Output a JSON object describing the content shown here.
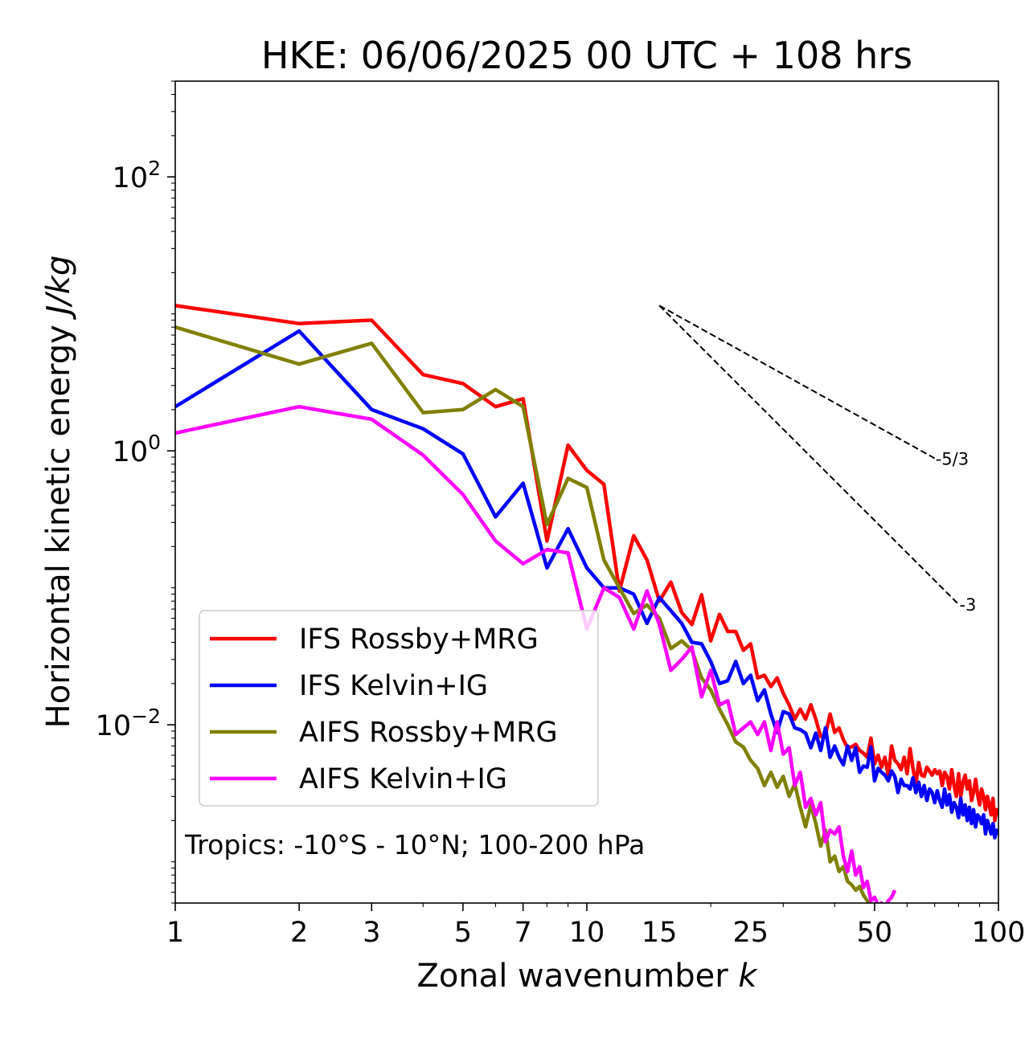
{
  "chart_data": {
    "type": "line",
    "title": "HKE: 06/06/2025 00 UTC + 108 hrs",
    "xlabel": "Zonal wavenumber k",
    "ylabel": "Horizontal kinetic energy J/kg",
    "xscale": "log",
    "yscale": "log",
    "xlim": [
      1,
      100
    ],
    "ylim": [
      0.0005,
      500
    ],
    "x_ticks": [
      {
        "value": 1,
        "label": "1"
      },
      {
        "value": 2,
        "label": "2"
      },
      {
        "value": 3,
        "label": "3"
      },
      {
        "value": 5,
        "label": "5"
      },
      {
        "value": 7,
        "label": "7"
      },
      {
        "value": 10,
        "label": "10"
      },
      {
        "value": 15,
        "label": "15"
      },
      {
        "value": 25,
        "label": "25"
      },
      {
        "value": 50,
        "label": "50"
      },
      {
        "value": 100,
        "label": "100"
      }
    ],
    "y_ticks": [
      {
        "value": 0.01,
        "base": "10",
        "exp": "−2"
      },
      {
        "value": 1,
        "base": "10",
        "exp": "0"
      },
      {
        "value": 100,
        "base": "10",
        "exp": "2"
      }
    ],
    "grid": false,
    "legend_position": "lower-left",
    "annotation": "Tropics: -10°S - 10°N; 100-200 hPa",
    "reference_lines": [
      {
        "label": "-5/3",
        "slope": -1.6667,
        "x": [
          15,
          70
        ],
        "y0": 11.5
      },
      {
        "label": "-3",
        "slope": -3,
        "x": [
          15,
          80
        ],
        "y0": 11.5
      }
    ],
    "series": [
      {
        "name": "IFS Rossby+MRG",
        "color": "#ff0000",
        "x": [
          1,
          2,
          3,
          4,
          5,
          6,
          7,
          8,
          9,
          10,
          11,
          12,
          13,
          14,
          15,
          16,
          17,
          18,
          19,
          20,
          21,
          22,
          23,
          24,
          25,
          26,
          27,
          28,
          29,
          30,
          31,
          32,
          33,
          34,
          35,
          36,
          37,
          38,
          39,
          40,
          41,
          42,
          43,
          44,
          45,
          46,
          47,
          48,
          49,
          50,
          51,
          52,
          53,
          54,
          55,
          56,
          57,
          58,
          59,
          60,
          61,
          62,
          63,
          64,
          65,
          66,
          67,
          68,
          69,
          70,
          71,
          72,
          73,
          74,
          75,
          76,
          77,
          78,
          79,
          80,
          81,
          82,
          83,
          84,
          85,
          86,
          87,
          88,
          89,
          90,
          91,
          92,
          93,
          94,
          95,
          96,
          97,
          98,
          99,
          100
        ],
        "y": [
          11.5,
          8.5,
          9.0,
          3.6,
          3.1,
          2.1,
          2.4,
          0.22,
          1.1,
          0.72,
          0.57,
          0.095,
          0.24,
          0.16,
          0.08,
          0.11,
          0.066,
          0.054,
          0.089,
          0.041,
          0.064,
          0.048,
          0.048,
          0.035,
          0.039,
          0.022,
          0.023,
          0.019,
          0.022,
          0.017,
          0.014,
          0.011,
          0.013,
          0.011,
          0.014,
          0.011,
          0.0082,
          0.0085,
          0.012,
          0.0088,
          0.0095,
          0.0078,
          0.0068,
          0.0069,
          0.0072,
          0.0065,
          0.0062,
          0.0058,
          0.008,
          0.0052,
          0.006,
          0.0049,
          0.0058,
          0.0042,
          0.007,
          0.0055,
          0.0052,
          0.0047,
          0.0058,
          0.0044,
          0.0067,
          0.0048,
          0.0037,
          0.0053,
          0.0043,
          0.0042,
          0.0049,
          0.0046,
          0.0043,
          0.0047,
          0.0044,
          0.0046,
          0.0036,
          0.0045,
          0.0042,
          0.0034,
          0.0047,
          0.0036,
          0.003,
          0.0044,
          0.003,
          0.0038,
          0.0043,
          0.0034,
          0.0039,
          0.0028,
          0.0032,
          0.004,
          0.0031,
          0.0026,
          0.0034,
          0.003,
          0.0024,
          0.003,
          0.0026,
          0.0022,
          0.0029,
          0.002,
          0.0024,
          0.0022
        ]
      },
      {
        "name": "IFS Kelvin+IG",
        "color": "#0000ff",
        "x": [
          1,
          2,
          3,
          4,
          5,
          6,
          7,
          8,
          9,
          10,
          11,
          12,
          13,
          14,
          15,
          16,
          17,
          18,
          19,
          20,
          21,
          22,
          23,
          24,
          25,
          26,
          27,
          28,
          29,
          30,
          31,
          32,
          33,
          34,
          35,
          36,
          37,
          38,
          39,
          40,
          41,
          42,
          43,
          44,
          45,
          46,
          47,
          48,
          49,
          50,
          51,
          52,
          53,
          54,
          55,
          56,
          57,
          58,
          59,
          60,
          61,
          62,
          63,
          64,
          65,
          66,
          67,
          68,
          69,
          70,
          71,
          72,
          73,
          74,
          75,
          76,
          77,
          78,
          79,
          80,
          81,
          82,
          83,
          84,
          85,
          86,
          87,
          88,
          89,
          90,
          91,
          92,
          93,
          94,
          95,
          96,
          97,
          98,
          99,
          100
        ],
        "y": [
          2.1,
          7.5,
          2.0,
          1.45,
          0.95,
          0.33,
          0.58,
          0.14,
          0.27,
          0.14,
          0.1,
          0.1,
          0.09,
          0.055,
          0.085,
          0.068,
          0.055,
          0.04,
          0.039,
          0.029,
          0.02,
          0.021,
          0.029,
          0.02,
          0.023,
          0.015,
          0.018,
          0.012,
          0.0088,
          0.0125,
          0.012,
          0.0095,
          0.0092,
          0.0087,
          0.0068,
          0.0087,
          0.0065,
          0.0095,
          0.0058,
          0.007,
          0.0058,
          0.0051,
          0.007,
          0.0055,
          0.0068,
          0.0045,
          0.005,
          0.0049,
          0.0069,
          0.0039,
          0.0048,
          0.0045,
          0.0043,
          0.0039,
          0.0046,
          0.0042,
          0.0032,
          0.004,
          0.0036,
          0.0036,
          0.0034,
          0.0041,
          0.0032,
          0.0038,
          0.003,
          0.0036,
          0.0028,
          0.0034,
          0.0032,
          0.0027,
          0.0033,
          0.0028,
          0.0025,
          0.0034,
          0.0026,
          0.0031,
          0.0023,
          0.0027,
          0.0025,
          0.0021,
          0.0029,
          0.0022,
          0.0026,
          0.002,
          0.0025,
          0.0019,
          0.0024,
          0.0018,
          0.0022,
          0.0021,
          0.0019,
          0.0022,
          0.0016,
          0.002,
          0.0018,
          0.0016,
          0.0019,
          0.0015,
          0.0017,
          0.0016
        ]
      },
      {
        "name": "AIFS Rossby+MRG",
        "color": "#808000",
        "x": [
          1,
          2,
          3,
          4,
          5,
          6,
          7,
          8,
          9,
          10,
          11,
          12,
          13,
          14,
          15,
          16,
          17,
          18,
          19,
          20,
          21,
          22,
          23,
          24,
          25,
          26,
          27,
          28,
          29,
          30,
          31,
          32,
          33,
          34,
          35,
          36,
          37,
          38,
          39,
          40,
          41,
          42,
          43,
          44,
          45,
          46,
          47,
          48,
          49,
          50
        ],
        "y": [
          8.0,
          4.3,
          6.1,
          1.9,
          2.0,
          2.8,
          2.1,
          0.29,
          0.63,
          0.54,
          0.16,
          0.1,
          0.065,
          0.075,
          0.06,
          0.036,
          0.041,
          0.035,
          0.022,
          0.018,
          0.013,
          0.01,
          0.0075,
          0.0069,
          0.0055,
          0.0048,
          0.0036,
          0.0045,
          0.0035,
          0.0042,
          0.003,
          0.0037,
          0.0025,
          0.0018,
          0.0026,
          0.0019,
          0.0013,
          0.0017,
          0.001,
          0.0011,
          0.00085,
          0.00092,
          0.00072,
          0.00068,
          0.00062,
          0.00066,
          0.00057,
          0.00052,
          0.00049,
          0.00048
        ]
      },
      {
        "name": "AIFS Kelvin+IG",
        "color": "#ff00ff",
        "x": [
          1,
          2,
          3,
          4,
          5,
          6,
          7,
          8,
          9,
          10,
          11,
          12,
          13,
          14,
          15,
          16,
          17,
          18,
          19,
          20,
          21,
          22,
          23,
          24,
          25,
          26,
          27,
          28,
          29,
          30,
          31,
          32,
          33,
          34,
          35,
          36,
          37,
          38,
          39,
          40,
          41,
          42,
          43,
          44,
          45,
          46,
          47,
          48,
          49,
          50,
          51,
          52,
          53,
          54,
          55,
          56
        ],
        "y": [
          1.35,
          2.1,
          1.7,
          0.93,
          0.48,
          0.22,
          0.15,
          0.19,
          0.18,
          0.05,
          0.1,
          0.085,
          0.05,
          0.095,
          0.054,
          0.025,
          0.03,
          0.037,
          0.016,
          0.025,
          0.014,
          0.015,
          0.0085,
          0.0095,
          0.0105,
          0.0085,
          0.0105,
          0.0065,
          0.0105,
          0.0061,
          0.0068,
          0.0036,
          0.0045,
          0.0025,
          0.0029,
          0.0022,
          0.0027,
          0.0014,
          0.0017,
          0.0016,
          0.0018,
          0.0011,
          0.00085,
          0.0012,
          0.0008,
          0.00092,
          0.00065,
          0.00072,
          0.00052,
          0.00055,
          0.00048,
          0.0005,
          0.00045,
          0.00052,
          0.00055,
          0.00062
        ]
      }
    ]
  }
}
